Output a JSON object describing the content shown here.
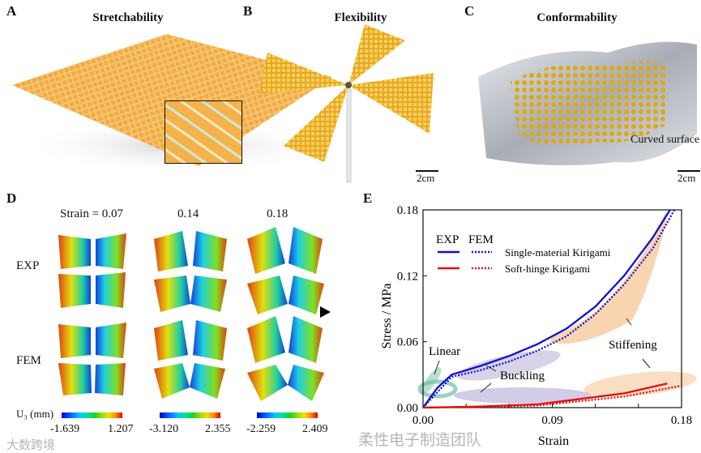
{
  "panels": {
    "a": {
      "label": "A",
      "title": "Stretchability"
    },
    "b": {
      "label": "B",
      "title": "Flexibility",
      "scale": "2cm"
    },
    "c": {
      "label": "C",
      "title": "Conformability",
      "annotation": "Curved surface",
      "scale": "2cm"
    },
    "d": {
      "label": "D",
      "strains": [
        "Strain = 0.07",
        "0.14",
        "0.18"
      ],
      "row_exp": "EXP",
      "row_fem": "FEM",
      "colorbar_label": "U₃ (mm)",
      "colorbars": [
        {
          "min": "-1.639",
          "max": "1.207"
        },
        {
          "min": "-3.120",
          "max": "2.355"
        },
        {
          "min": "-2.259",
          "max": "2.409"
        }
      ]
    },
    "e": {
      "label": "E"
    }
  },
  "chart_data": {
    "type": "line",
    "title": "",
    "xlabel": "Strain",
    "ylabel": "Stress / MPa",
    "xlim": [
      0,
      0.18
    ],
    "ylim": [
      0,
      0.18
    ],
    "xticks": [
      "0.00",
      "0.09",
      "0.18"
    ],
    "xticks_minor": [
      0.03,
      0.06,
      0.12,
      0.15
    ],
    "yticks": [
      "0.00",
      "0.06",
      "0.12",
      "0.18"
    ],
    "legend_header": [
      "EXP",
      "FEM"
    ],
    "legend_entries": [
      "Single-material Kirigami",
      "Soft-hinge Kirigami"
    ],
    "legend_position": "top-left",
    "series": [
      {
        "name": "Single-material Kirigami EXP",
        "color": "#1010d0",
        "style": "solid",
        "x": [
          0,
          0.01,
          0.02,
          0.04,
          0.06,
          0.08,
          0.1,
          0.12,
          0.14,
          0.16,
          0.172
        ],
        "y": [
          0,
          0.018,
          0.03,
          0.038,
          0.047,
          0.058,
          0.072,
          0.092,
          0.12,
          0.155,
          0.18
        ]
      },
      {
        "name": "Single-material Kirigami FEM",
        "color": "#1010d0",
        "style": "dotted",
        "x": [
          0,
          0.01,
          0.02,
          0.04,
          0.06,
          0.08,
          0.1,
          0.12,
          0.14,
          0.16,
          0.175
        ],
        "y": [
          0,
          0.014,
          0.028,
          0.034,
          0.042,
          0.052,
          0.065,
          0.085,
          0.112,
          0.145,
          0.18
        ]
      },
      {
        "name": "Soft-hinge Kirigami EXP",
        "color": "#e01010",
        "style": "solid",
        "x": [
          0,
          0.04,
          0.08,
          0.11,
          0.14,
          0.17
        ],
        "y": [
          0,
          0.001,
          0.003,
          0.008,
          0.013,
          0.022
        ]
      },
      {
        "name": "Soft-hinge Kirigami FEM",
        "color": "#e01010",
        "style": "dotted",
        "x": [
          0,
          0.04,
          0.08,
          0.11,
          0.14,
          0.18
        ],
        "y": [
          0,
          0.0005,
          0.002,
          0.006,
          0.01,
          0.02
        ]
      }
    ],
    "annotations": [
      "Linear",
      "Buckling",
      "Stiffening"
    ]
  },
  "watermarks": [
    "柔性电子制造团队",
    "大数跨境"
  ]
}
